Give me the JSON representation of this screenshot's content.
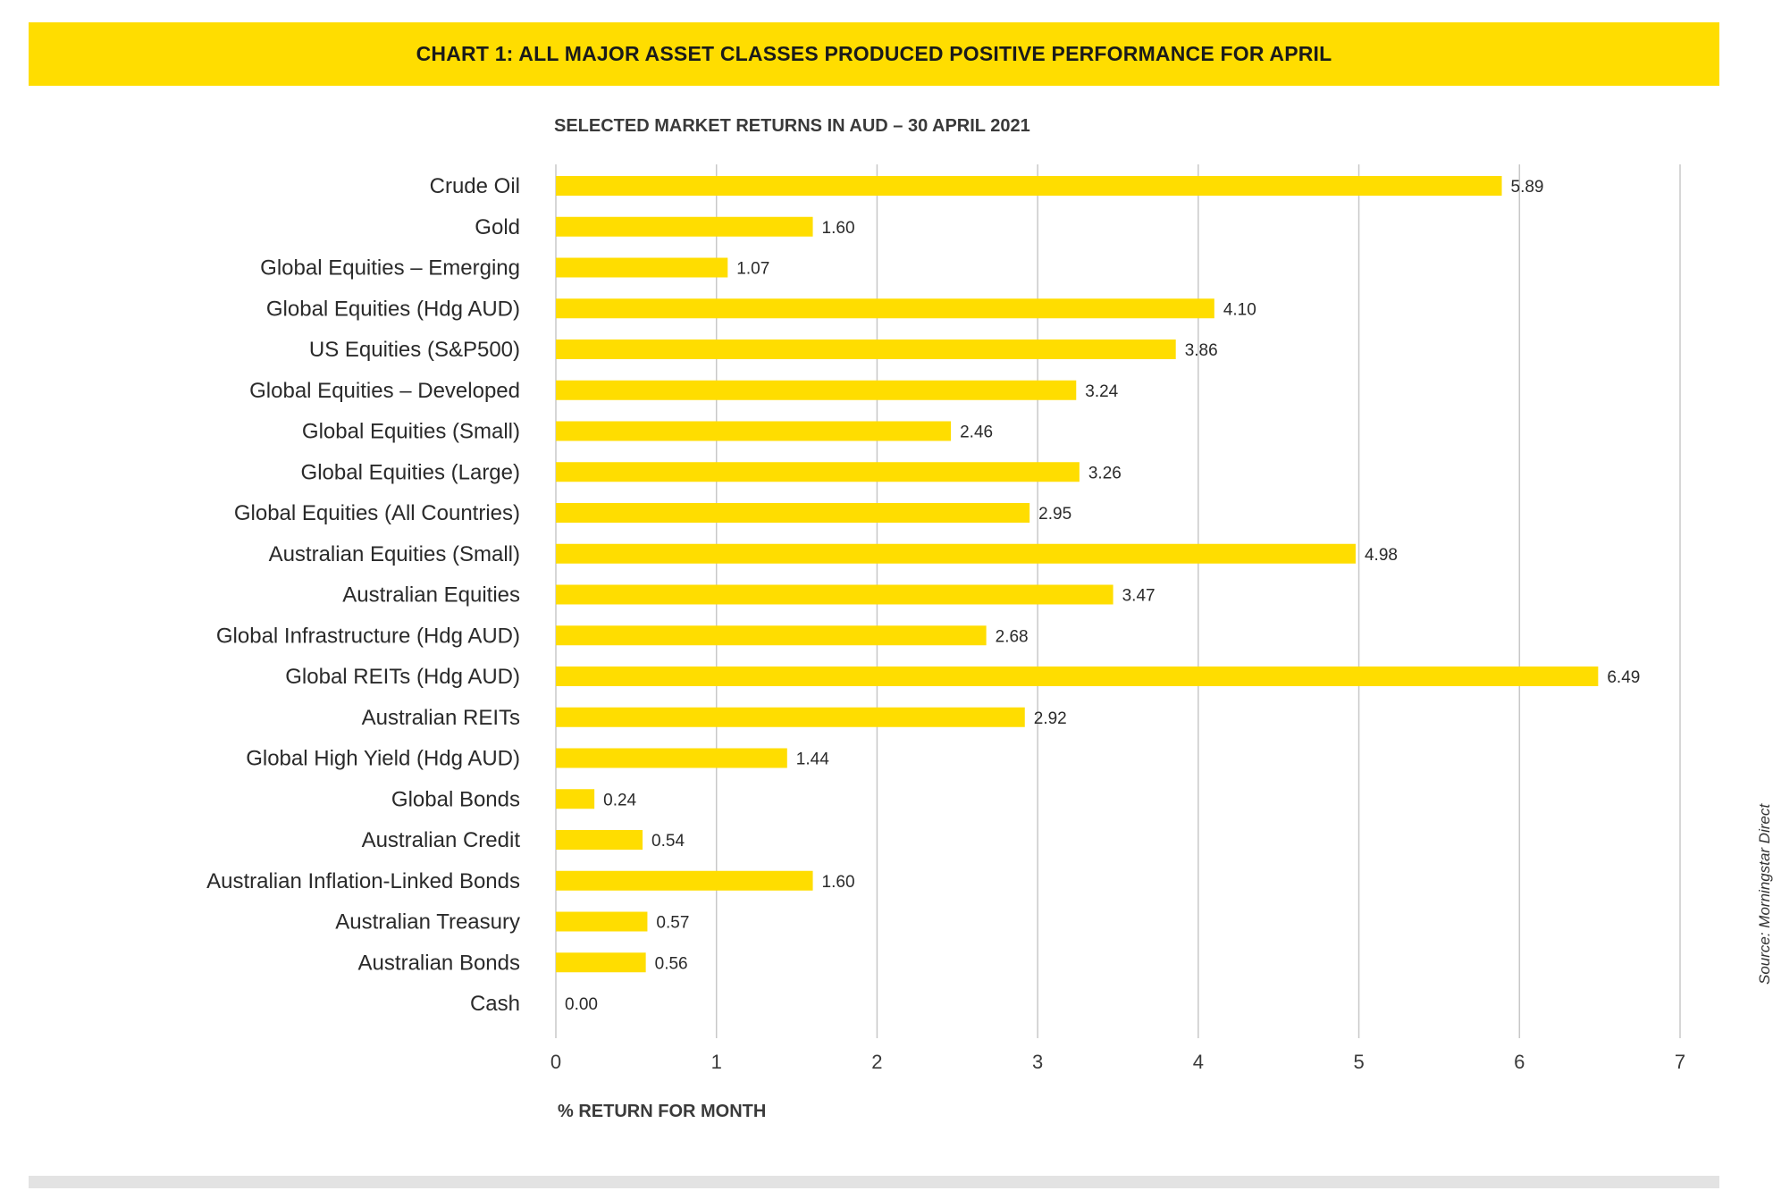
{
  "header": {
    "banner_title": "CHART 1: ALL MAJOR ASSET CLASSES PRODUCED POSITIVE PERFORMANCE FOR APRIL",
    "subtitle": "SELECTED MARKET RETURNS IN AUD – 30 APRIL 2021"
  },
  "source": "Source: Morningstar Direct",
  "colors": {
    "bar": "#FFDD00",
    "banner": "#FFDD00",
    "grid": "#c8c8c8"
  },
  "chart_data": {
    "type": "bar",
    "orientation": "horizontal",
    "title": "SELECTED MARKET RETURNS IN AUD – 30 APRIL 2021",
    "xlabel": "% RETURN FOR MONTH",
    "ylabel": "",
    "xlim": [
      0,
      7
    ],
    "xticks": [
      "0",
      "1",
      "2",
      "3",
      "4",
      "5",
      "6",
      "7"
    ],
    "grid": true,
    "categories": [
      "Crude Oil",
      "Gold",
      "Global Equities – Emerging",
      "Global Equities (Hdg AUD)",
      "US Equities (S&P500)",
      "Global Equities – Developed",
      "Global Equities (Small)",
      "Global Equities (Large)",
      "Global Equities (All Countries)",
      "Australian Equities (Small)",
      "Australian Equities",
      "Global Infrastructure (Hdg AUD)",
      "Global REITs (Hdg AUD)",
      "Australian REITs",
      "Global High Yield (Hdg AUD)",
      "Global Bonds",
      "Australian Credit",
      "Australian Inflation-Linked Bonds",
      "Australian Treasury",
      "Australian Bonds",
      "Cash"
    ],
    "values": [
      5.89,
      1.6,
      1.07,
      4.1,
      3.86,
      3.24,
      2.46,
      3.26,
      2.95,
      4.98,
      3.47,
      2.68,
      6.49,
      2.92,
      1.44,
      0.24,
      0.54,
      1.6,
      0.57,
      0.56,
      0.0
    ],
    "value_labels": [
      "5.89",
      "1.60",
      "1.07",
      "4.10",
      "3.86",
      "3.24",
      "2.46",
      "3.26",
      "2.95",
      "4.98",
      "3.47",
      "2.68",
      "6.49",
      "2.92",
      "1.44",
      "0.24",
      "0.54",
      "1.60",
      "0.57",
      "0.56",
      "0.00"
    ]
  }
}
